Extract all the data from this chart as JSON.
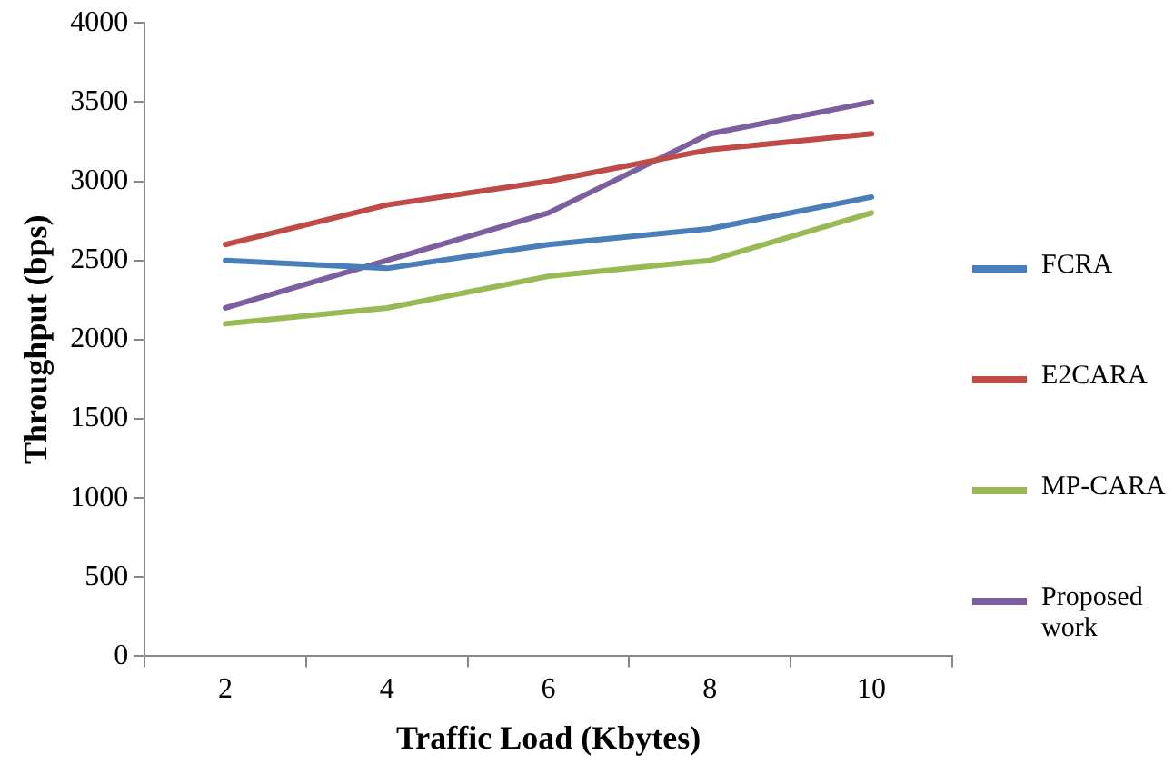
{
  "chart_data": {
    "type": "line",
    "xlabel": "Traffic Load (Kbytes)",
    "ylabel": "Throughput (bps)",
    "categories": [
      "2",
      "4",
      "6",
      "8",
      "10"
    ],
    "series": [
      {
        "name": "FCRA",
        "color": "#4a7ebb",
        "values": [
          2500,
          2450,
          2600,
          2700,
          2900
        ]
      },
      {
        "name": "E2CARA",
        "color": "#be4b48",
        "values": [
          2600,
          2850,
          3000,
          3200,
          3300
        ]
      },
      {
        "name": "MP-CARA",
        "color": "#98b954",
        "values": [
          2100,
          2200,
          2400,
          2500,
          2800
        ]
      },
      {
        "name": "Proposed work",
        "color": "#7d5fa0",
        "values": [
          2200,
          2500,
          2800,
          3300,
          3500
        ]
      }
    ],
    "ylim": [
      0,
      4000
    ],
    "yticks": [
      0,
      500,
      1000,
      1500,
      2000,
      2500,
      3000,
      3500,
      4000
    ],
    "grid": false,
    "legend": "right",
    "marker": "none",
    "line_style": "solid"
  }
}
